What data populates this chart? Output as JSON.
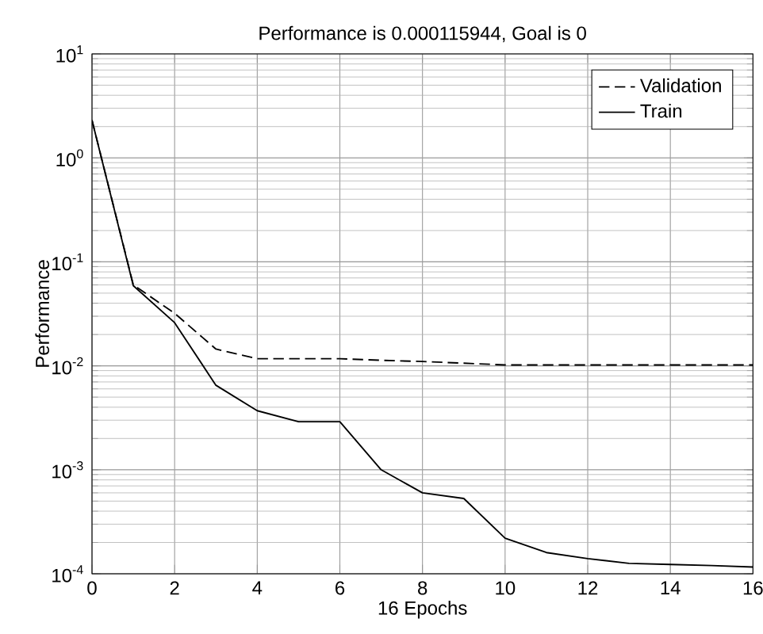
{
  "chart_data": {
    "type": "line",
    "title": "Performance is 0.000115944, Goal is 0",
    "xlabel": "16 Epochs",
    "ylabel": "Performance",
    "x": [
      0,
      1,
      2,
      3,
      4,
      5,
      6,
      7,
      8,
      9,
      10,
      11,
      12,
      13,
      14,
      15,
      16
    ],
    "series": [
      {
        "name": "Validation",
        "color": "#000000",
        "line_style": "dashed",
        "values": [
          2.3,
          0.06,
          0.032,
          0.0145,
          0.0117,
          0.0117,
          0.0117,
          0.0113,
          0.011,
          0.0106,
          0.0102,
          0.0102,
          0.0102,
          0.0102,
          0.0102,
          0.0102,
          0.0102
        ]
      },
      {
        "name": "Train",
        "color": "#000000",
        "line_style": "solid",
        "values": [
          2.3,
          0.059,
          0.026,
          0.0065,
          0.0037,
          0.0029,
          0.0029,
          0.001,
          0.0006,
          0.00053,
          0.00022,
          0.00016,
          0.00014,
          0.000126,
          0.000123,
          0.00012,
          0.000116
        ]
      }
    ],
    "log": "y",
    "grid": true,
    "legend": "top right",
    "marker": "none",
    "xlim": [
      0,
      16
    ],
    "xticks": [
      0,
      2,
      4,
      6,
      8,
      10,
      12,
      14,
      16
    ],
    "ylim": [
      0.0001,
      10
    ],
    "yticks": [
      {
        "value": 0.0001,
        "label": "10$^{-4}$"
      },
      {
        "value": 0.001,
        "label": "10$^{-3}$"
      },
      {
        "value": 0.01,
        "label": "10$^{-2}$"
      },
      {
        "value": 0.1,
        "label": "10$^{-1}$"
      },
      {
        "value": 1,
        "label": "10$^{0}$"
      },
      {
        "value": 10,
        "label": "10$^{1}$"
      }
    ]
  }
}
